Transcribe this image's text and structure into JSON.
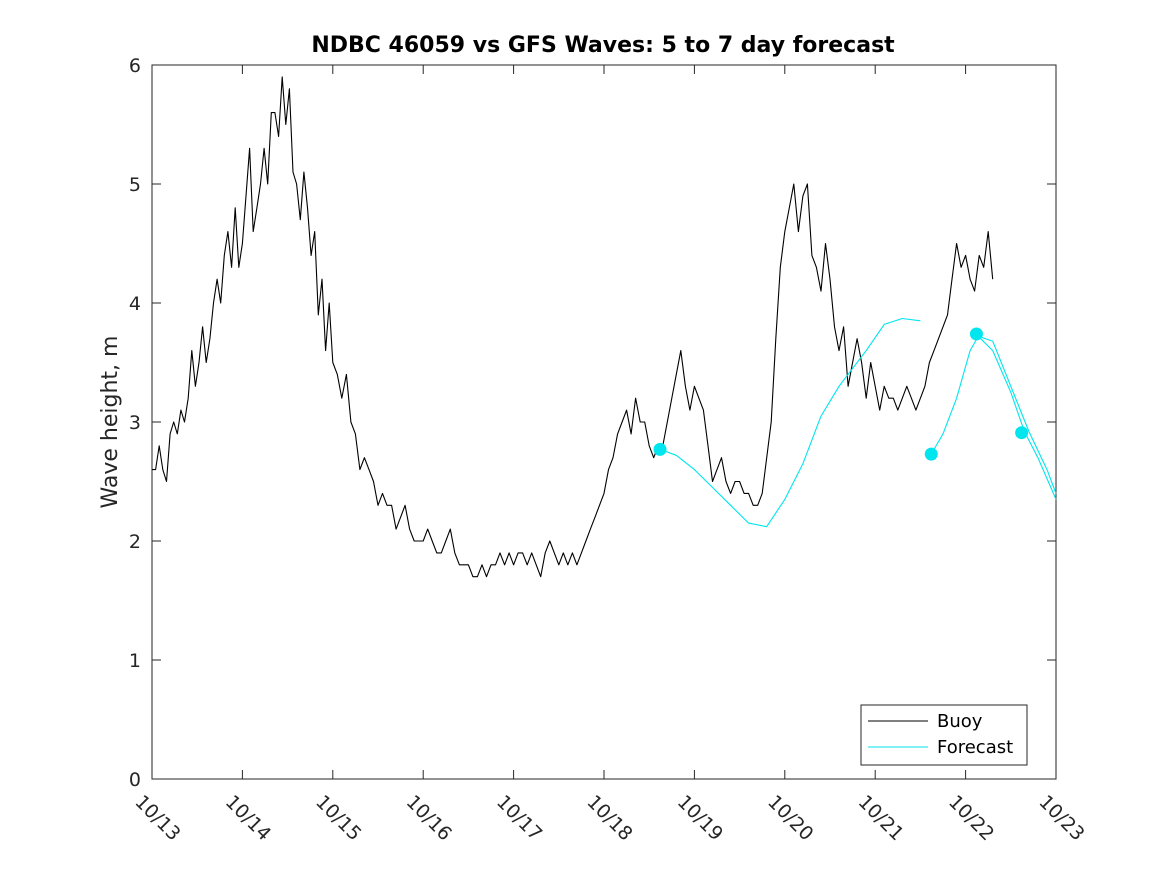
{
  "chart_data": {
    "type": "line",
    "title": "NDBC 46059 vs GFS Waves: 5 to 7 day forecast",
    "xlabel": "",
    "ylabel": "Wave height, m",
    "xlim": [
      0,
      10
    ],
    "ylim": [
      0,
      6
    ],
    "x_ticks": [
      0,
      1,
      2,
      3,
      4,
      5,
      6,
      7,
      8,
      9,
      10
    ],
    "x_tick_labels": [
      "10/13",
      "10/14",
      "10/15",
      "10/16",
      "10/17",
      "10/18",
      "10/19",
      "10/20",
      "10/21",
      "10/22",
      "10/23"
    ],
    "y_ticks": [
      0,
      1,
      2,
      3,
      4,
      5,
      6
    ],
    "y_tick_labels": [
      "0",
      "1",
      "2",
      "3",
      "4",
      "5",
      "6"
    ],
    "legend": {
      "placement": "bottom-right",
      "entries": [
        "Buoy",
        "Forecast"
      ]
    },
    "colors": {
      "buoy": "#000000",
      "forecast": "#00e5ee",
      "axis": "#262626"
    },
    "series": [
      {
        "name": "Buoy",
        "x": [
          0.0,
          0.04,
          0.08,
          0.12,
          0.16,
          0.2,
          0.24,
          0.28,
          0.32,
          0.36,
          0.4,
          0.44,
          0.48,
          0.52,
          0.56,
          0.6,
          0.64,
          0.68,
          0.72,
          0.76,
          0.8,
          0.84,
          0.88,
          0.92,
          0.96,
          1.0,
          1.04,
          1.08,
          1.12,
          1.16,
          1.2,
          1.24,
          1.28,
          1.32,
          1.36,
          1.4,
          1.44,
          1.48,
          1.52,
          1.56,
          1.6,
          1.64,
          1.68,
          1.72,
          1.76,
          1.8,
          1.84,
          1.88,
          1.92,
          1.96,
          2.0,
          2.05,
          2.1,
          2.15,
          2.2,
          2.25,
          2.3,
          2.35,
          2.4,
          2.45,
          2.5,
          2.55,
          2.6,
          2.65,
          2.7,
          2.75,
          2.8,
          2.85,
          2.9,
          2.95,
          3.0,
          3.05,
          3.1,
          3.15,
          3.2,
          3.25,
          3.3,
          3.35,
          3.4,
          3.45,
          3.5,
          3.55,
          3.6,
          3.65,
          3.7,
          3.75,
          3.8,
          3.85,
          3.9,
          3.95,
          4.0,
          4.05,
          4.1,
          4.15,
          4.2,
          4.25,
          4.3,
          4.35,
          4.4,
          4.45,
          4.5,
          4.55,
          4.6,
          4.65,
          4.7,
          4.75,
          4.8,
          4.85,
          4.9,
          4.95,
          5.0,
          5.05,
          5.1,
          5.15,
          5.2,
          5.25,
          5.3,
          5.35,
          5.4,
          5.45,
          5.5,
          5.55,
          5.6,
          5.65,
          5.7,
          5.75,
          5.8,
          5.85,
          5.9,
          5.95,
          6.0,
          6.05,
          6.1,
          6.15,
          6.2,
          6.25,
          6.3,
          6.35,
          6.4,
          6.45,
          6.5,
          6.55,
          6.6,
          6.65,
          6.7,
          6.75,
          6.8,
          6.85,
          6.9,
          6.95,
          7.0,
          7.05,
          7.1,
          7.15,
          7.2,
          7.25,
          7.3,
          7.35,
          7.4,
          7.45,
          7.5,
          7.55,
          7.6,
          7.65,
          7.7,
          7.75,
          7.8,
          7.85,
          7.9,
          7.95,
          8.0,
          8.05,
          8.1,
          8.15,
          8.2,
          8.25,
          8.3,
          8.35,
          8.4,
          8.45,
          8.5,
          8.55,
          8.6,
          8.65,
          8.7,
          8.75,
          8.8,
          8.85,
          8.9,
          8.95,
          9.0,
          9.05,
          9.1,
          9.15,
          9.2,
          9.25,
          9.3
        ],
        "values": [
          2.6,
          2.6,
          2.8,
          2.6,
          2.5,
          2.9,
          3.0,
          2.9,
          3.1,
          3.0,
          3.2,
          3.6,
          3.3,
          3.5,
          3.8,
          3.5,
          3.7,
          4.0,
          4.2,
          4.0,
          4.4,
          4.6,
          4.3,
          4.8,
          4.3,
          4.5,
          4.9,
          5.3,
          4.6,
          4.8,
          5.0,
          5.3,
          5.0,
          5.6,
          5.6,
          5.4,
          5.9,
          5.5,
          5.8,
          5.1,
          5.0,
          4.7,
          5.1,
          4.8,
          4.4,
          4.6,
          3.9,
          4.2,
          3.6,
          4.0,
          3.5,
          3.4,
          3.2,
          3.4,
          3.0,
          2.9,
          2.6,
          2.7,
          2.6,
          2.5,
          2.3,
          2.4,
          2.3,
          2.3,
          2.1,
          2.2,
          2.3,
          2.1,
          2.0,
          2.0,
          2.0,
          2.1,
          2.0,
          1.9,
          1.9,
          2.0,
          2.1,
          1.9,
          1.8,
          1.8,
          1.8,
          1.7,
          1.7,
          1.8,
          1.7,
          1.8,
          1.8,
          1.9,
          1.8,
          1.9,
          1.8,
          1.9,
          1.9,
          1.8,
          1.9,
          1.8,
          1.7,
          1.9,
          2.0,
          1.9,
          1.8,
          1.9,
          1.8,
          1.9,
          1.8,
          1.9,
          2.0,
          2.1,
          2.2,
          2.3,
          2.4,
          2.6,
          2.7,
          2.9,
          3.0,
          3.1,
          2.9,
          3.2,
          3.0,
          3.0,
          2.8,
          2.7,
          2.8,
          2.8,
          3.0,
          3.2,
          3.4,
          3.6,
          3.3,
          3.1,
          3.3,
          3.2,
          3.1,
          2.8,
          2.5,
          2.6,
          2.7,
          2.5,
          2.4,
          2.5,
          2.5,
          2.4,
          2.4,
          2.3,
          2.3,
          2.4,
          2.7,
          3.0,
          3.7,
          4.3,
          4.6,
          4.8,
          5.0,
          4.6,
          4.9,
          5.0,
          4.4,
          4.3,
          4.1,
          4.5,
          4.2,
          3.8,
          3.6,
          3.8,
          3.3,
          3.5,
          3.7,
          3.5,
          3.2,
          3.5,
          3.3,
          3.1,
          3.3,
          3.2,
          3.2,
          3.1,
          3.2,
          3.3,
          3.2,
          3.1,
          3.2,
          3.3,
          3.5,
          3.6,
          3.7,
          3.8,
          3.9,
          4.2,
          4.5,
          4.3,
          4.4,
          4.2,
          4.1,
          4.4,
          4.3,
          4.6,
          4.2
        ]
      },
      {
        "name": "Forecast",
        "segments": [
          {
            "x": [
              5.62,
              5.8,
              6.0,
              6.2,
              6.4,
              6.6,
              6.8,
              7.0,
              7.2,
              7.4,
              7.6,
              7.9,
              8.1,
              8.3,
              8.5
            ],
            "values": [
              2.77,
              2.72,
              2.6,
              2.45,
              2.3,
              2.15,
              2.12,
              2.35,
              2.65,
              3.05,
              3.3,
              3.6,
              3.82,
              3.87,
              3.85
            ]
          },
          {
            "x": [
              8.62,
              8.75,
              8.9,
              9.05,
              9.14,
              9.3,
              9.5,
              9.7,
              9.9,
              10.0
            ],
            "values": [
              2.73,
              2.9,
              3.2,
              3.6,
              3.72,
              3.68,
              3.3,
              2.92,
              2.6,
              2.4
            ]
          },
          {
            "x": [
              9.14,
              9.3,
              9.5,
              9.65,
              9.8,
              10.0
            ],
            "values": [
              3.72,
              3.6,
              3.25,
              2.92,
              2.7,
              2.35
            ]
          }
        ],
        "markers": {
          "x": [
            5.62,
            8.62,
            9.12,
            9.62
          ],
          "values": [
            2.77,
            2.73,
            3.74,
            2.91
          ]
        }
      }
    ]
  }
}
